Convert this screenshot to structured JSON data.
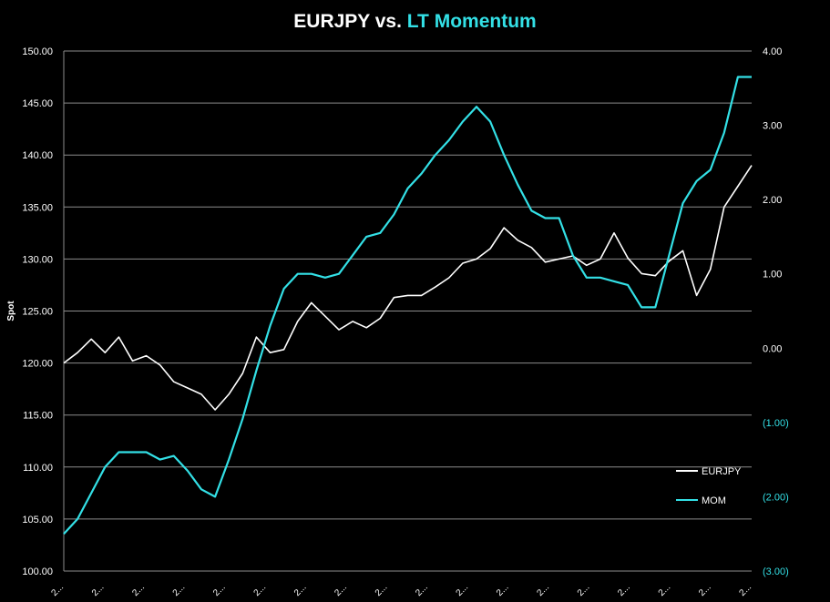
{
  "chart_data": {
    "type": "line",
    "title": {
      "part1": "EURJPY vs. ",
      "part2": "LT Momentum"
    },
    "ylabel": "Spot",
    "ylim": [
      100,
      150
    ],
    "y2lim": [
      -3,
      4
    ],
    "y_ticks": [
      "100.00",
      "105.00",
      "110.00",
      "115.00",
      "120.00",
      "125.00",
      "130.00",
      "135.00",
      "140.00",
      "145.00",
      "150.00"
    ],
    "y2_ticks": [
      "(3.00)",
      "(2.00)",
      "(1.00)",
      "0.00",
      "1.00",
      "2.00",
      "3.00",
      "4.00"
    ],
    "x_tick_label": "2...",
    "x_tick_count": 18,
    "grid": "horizontal",
    "legend_position": "lower-right",
    "colors": {
      "background": "#000000",
      "eurjpy": "#ffffff",
      "mom": "#33e0e6",
      "grid": "#8c8c8c",
      "y2_negative": "#33e0e6"
    },
    "series": [
      {
        "name": "EURJPY",
        "axis": "left",
        "x": [
          0,
          2,
          4,
          6,
          8,
          10,
          12,
          14,
          16,
          18,
          20,
          22,
          24,
          26,
          28,
          30,
          32,
          34,
          36,
          38,
          40,
          42,
          44,
          46,
          48,
          50,
          52,
          54,
          56,
          58,
          60,
          62,
          64,
          66,
          68,
          70,
          72,
          74,
          76,
          78,
          80,
          82,
          84,
          86,
          88,
          90,
          92,
          94,
          96,
          98,
          100
        ],
        "values": [
          120.0,
          121.0,
          122.3,
          121.0,
          122.5,
          120.2,
          120.7,
          119.8,
          118.2,
          117.6,
          117.0,
          115.5,
          117.0,
          119.0,
          122.5,
          121.0,
          121.3,
          124.0,
          125.8,
          124.5,
          123.2,
          124.0,
          123.4,
          124.3,
          126.3,
          126.5,
          126.5,
          127.3,
          128.2,
          129.6,
          130.0,
          131.0,
          133.0,
          131.8,
          131.1,
          129.7,
          130.0,
          130.3,
          129.4,
          130.0,
          132.5,
          130.1,
          128.6,
          128.4,
          129.8,
          130.8,
          126.5,
          129.0,
          135.0,
          137.0,
          139.0
        ]
      },
      {
        "name": "MOM",
        "axis": "right",
        "x": [
          0,
          2,
          4,
          6,
          8,
          10,
          12,
          14,
          16,
          18,
          20,
          22,
          24,
          26,
          28,
          30,
          32,
          34,
          36,
          38,
          40,
          42,
          44,
          46,
          48,
          50,
          52,
          54,
          56,
          58,
          60,
          62,
          64,
          66,
          68,
          70,
          72,
          74,
          76,
          78,
          80,
          82,
          84,
          86,
          88,
          90,
          92,
          94,
          96,
          98,
          100
        ],
        "values": [
          -2.5,
          -2.3,
          -1.95,
          -1.6,
          -1.4,
          -1.4,
          -1.4,
          -1.5,
          -1.45,
          -1.65,
          -1.9,
          -2.0,
          -1.5,
          -0.95,
          -0.3,
          0.3,
          0.8,
          1.0,
          1.0,
          0.95,
          1.0,
          1.25,
          1.5,
          1.55,
          1.8,
          2.15,
          2.35,
          2.6,
          2.8,
          3.05,
          3.25,
          3.05,
          2.6,
          2.2,
          1.85,
          1.75,
          1.75,
          1.25,
          0.95,
          0.95,
          0.9,
          0.85,
          0.55,
          0.55,
          1.25,
          1.95,
          2.25,
          2.4,
          2.9,
          3.65,
          3.65
        ]
      }
    ]
  }
}
